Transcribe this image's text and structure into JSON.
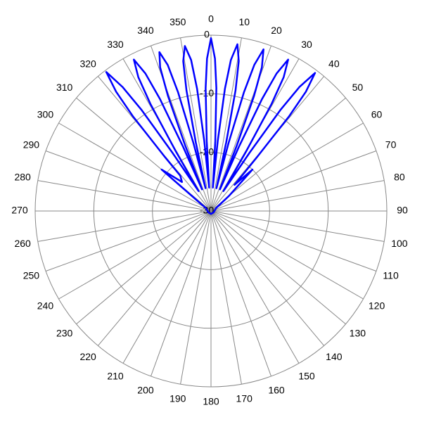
{
  "chart_data": {
    "type": "polar",
    "theta": [
      -55,
      -50,
      -45,
      -41,
      -40.5,
      -39.5,
      -38.5,
      -37,
      -35.5,
      -34.5,
      -33.5,
      -32,
      -30.5,
      -29.5,
      -28.5,
      -27,
      -25.5,
      -24.5,
      -23.5,
      -22.5,
      -21.5,
      -20.5,
      -19.5,
      -18,
      -16.5,
      -15.5,
      -14.5,
      -13.5,
      -12.5,
      -11.5,
      -10.5,
      -9,
      -7.5,
      -6.5,
      -5.5,
      -4.5,
      -3.5,
      -2.5,
      -1.5,
      0,
      1.5,
      2.5,
      3.5,
      4.5,
      5.5,
      6.5,
      7.5,
      9,
      10.5,
      11.5,
      12.5,
      13.5,
      14.5,
      15.5,
      16.5,
      18,
      19.5,
      20.5,
      21.5,
      22.5,
      23.5,
      24.5,
      25.5,
      27,
      28.5,
      29.5,
      30.5,
      32,
      33.5,
      34.5,
      35.5,
      37,
      38.5,
      39.5,
      40.5,
      42,
      45,
      50,
      60,
      120,
      180,
      240,
      300
    ],
    "series": [
      {
        "color": "#0000ff",
        "values": [
          -28,
          -19,
          -23,
          -22,
          -18,
          -9,
          -4,
          -0.3,
          -4,
          -9,
          -18,
          -26,
          -18,
          -9,
          -4,
          -1,
          -4,
          -9,
          -18,
          -26,
          -18,
          -9,
          -4,
          -1.5,
          -4,
          -9,
          -18,
          -26,
          -18,
          -9,
          -4,
          -1.5,
          -4,
          -9,
          -18,
          -26,
          -18,
          -9,
          -4,
          -0.5,
          -4,
          -9,
          -18,
          -26,
          -18,
          -9,
          -4,
          -1.2,
          -4,
          -9,
          -18,
          -26,
          -18,
          -9,
          -4,
          -1,
          -4,
          -9,
          -18,
          -26,
          -18,
          -9,
          -4,
          -1,
          -4,
          -9,
          -18,
          -26,
          -18,
          -9,
          -4,
          -0.5,
          -4,
          -9,
          -18,
          -24,
          -20,
          -26,
          -29,
          -29.5,
          -29.5,
          -29.5,
          -29
        ]
      }
    ],
    "rlim": [
      -30,
      0
    ],
    "rticks": [
      -30,
      -20,
      -10,
      0
    ],
    "thetaticks": [
      0,
      10,
      20,
      30,
      40,
      50,
      60,
      70,
      80,
      90,
      100,
      110,
      120,
      130,
      140,
      150,
      160,
      170,
      180,
      190,
      200,
      210,
      220,
      230,
      240,
      250,
      260,
      270,
      280,
      290,
      300,
      310,
      320,
      330,
      340,
      350
    ]
  }
}
